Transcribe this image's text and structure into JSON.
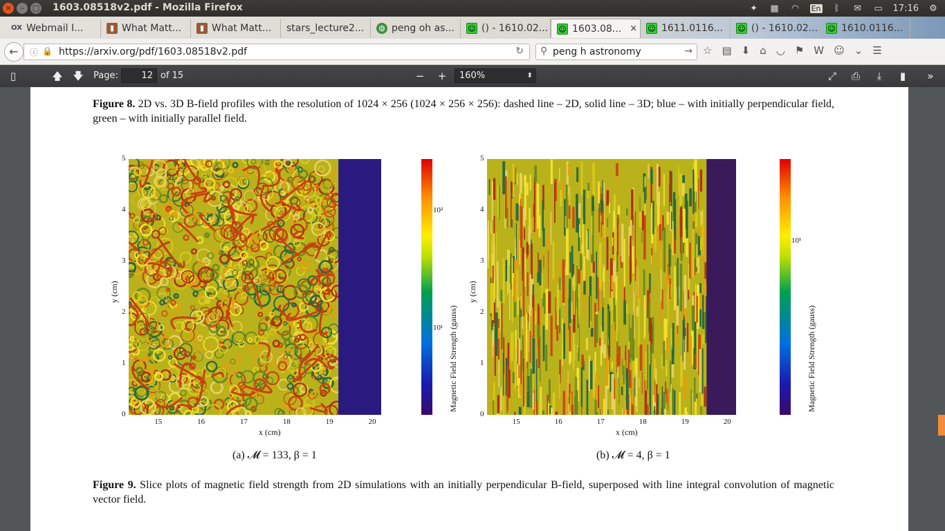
{
  "window": {
    "title": "1603.08518v2.pdf - Mozilla Firefox",
    "buttons": {
      "close": "×",
      "minimize": "–",
      "maximize": "□"
    }
  },
  "tray": {
    "time": "17:16",
    "lang": "En"
  },
  "tabs": [
    {
      "label": "Webmail I...",
      "icon": "ox-icon"
    },
    {
      "label": "What Matt...",
      "icon": "book-icon"
    },
    {
      "label": "What Matt...",
      "icon": "book-icon"
    },
    {
      "label": "stars_lecture2...",
      "icon": "none"
    },
    {
      "label": "peng oh as...",
      "icon": "globe-icon"
    },
    {
      "label": "() - 1610.02...",
      "icon": "smiley-icon"
    },
    {
      "label": "1603.08...",
      "icon": "smiley-icon",
      "active": true
    },
    {
      "label": "1611.0116...",
      "icon": "smiley-icon"
    },
    {
      "label": "() - 1610.02...",
      "icon": "smiley-icon"
    },
    {
      "label": "1610.0116...",
      "icon": "smiley-icon"
    }
  ],
  "nav": {
    "url": "https://arxiv.org/pdf/1603.08518v2.pdf",
    "search": "peng h astronomy"
  },
  "pdf": {
    "page_label": "Page:",
    "page_number": "12",
    "page_of": "of 15",
    "zoom": "160%"
  },
  "doc": {
    "fig8_label": "Figure 8.",
    "fig8_text": "2D vs. 3D B-field profiles with the resolution of 1024 × 256 (1024 × 256 × 256): dashed line – 2D, solid line – 3D; blue – with initially perpendicular field, green – with initially parallel field.",
    "fig9_label": "Figure 9.",
    "fig9_text": "Slice plots of magnetic field strength from 2D simulations with an initially perpendicular B-field, superposed with line integral convolution of magnetic vector field.",
    "sub_a": "(a) 𝓜 = 133, β = 1",
    "sub_b": "(b) 𝓜 = 4, β = 1"
  },
  "chart_data": [
    {
      "type": "heatmap",
      "title": "",
      "xlabel": "x  (cm)",
      "ylabel": "y  (cm)",
      "xlim": [
        14.3,
        20.2
      ],
      "ylim": [
        0,
        5
      ],
      "xticks": [
        "15",
        "16",
        "17",
        "18",
        "19",
        "20"
      ],
      "yticks": [
        "0",
        "1",
        "2",
        "3",
        "4",
        "5"
      ],
      "colorbar_label": "Magnetic Field Strength (gauss)",
      "colorbar_ticks": [
        "10¹",
        "10²"
      ],
      "colorbar_scale": "log",
      "pattern": "turbulent swirls"
    },
    {
      "type": "heatmap",
      "title": "",
      "xlabel": "x  (cm)",
      "ylabel": "y  (cm)",
      "xlim": [
        14.3,
        20.2
      ],
      "ylim": [
        0,
        5
      ],
      "xticks": [
        "15",
        "16",
        "17",
        "18",
        "19",
        "20"
      ],
      "yticks": [
        "0",
        "1",
        "2",
        "3",
        "4",
        "5"
      ],
      "colorbar_label": "Magnetic Field Strength (gauss)",
      "colorbar_ticks": [
        "10¹"
      ],
      "colorbar_scale": "log",
      "pattern": "vertical streaks"
    }
  ]
}
